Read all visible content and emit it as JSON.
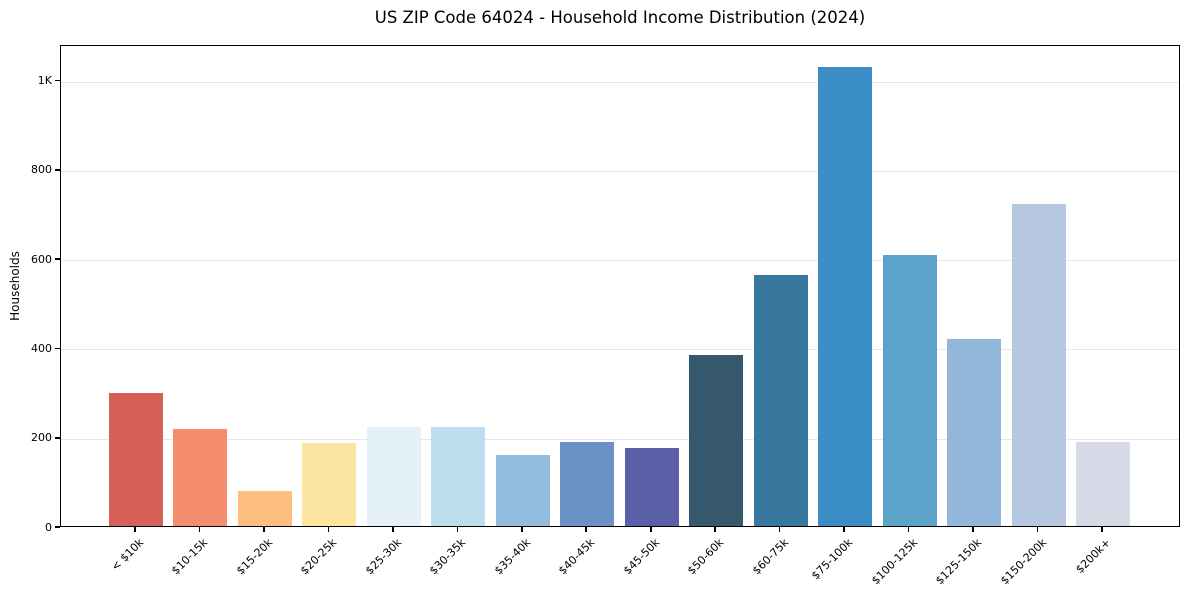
{
  "chart_data": {
    "type": "bar",
    "title": "US ZIP Code 64024 - Household Income Distribution (2024)",
    "xlabel": "",
    "ylabel": "Households",
    "categories": [
      "< $10k",
      "$10-15k",
      "$15-20k",
      "$20-25k",
      "$25-30k",
      "$30-35k",
      "$35-40k",
      "$40-45k",
      "$45-50k",
      "$50-60k",
      "$60-75k",
      "$75-100k",
      "$100-125k",
      "$125-150k",
      "$150-200k",
      "$200k+"
    ],
    "values": [
      298,
      218,
      78,
      186,
      222,
      222,
      160,
      189,
      175,
      383,
      562,
      1028,
      607,
      420,
      722,
      188
    ],
    "bar_colors": [
      "#d65f57",
      "#f48c6e",
      "#fdbe7e",
      "#fce4a1",
      "#e4f1f7",
      "#bddeec",
      "#92bcdd",
      "#6a92c5",
      "#5a5fa8",
      "#36596e",
      "#38789f",
      "#3a8ec5",
      "#5ba3c9",
      "#92b7da",
      "#b5c8e0",
      "#d6d9e6"
    ],
    "ylim": [
      0,
      1080
    ],
    "yticks": [
      0,
      200,
      400,
      600,
      800,
      1000
    ],
    "ytick_labels": [
      "0",
      "200",
      "400",
      "600",
      "800",
      "1K"
    ],
    "grid": "horizontal",
    "legend": "none",
    "background_color": "#ffffff",
    "axis_color": "#000000",
    "gridline_color": "#e7e8ec"
  }
}
